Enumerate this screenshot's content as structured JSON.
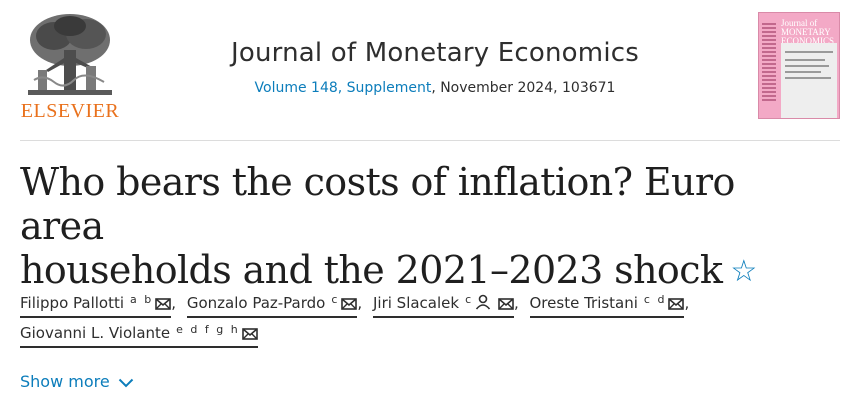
{
  "publisher": {
    "name": "ELSEVIER",
    "color": "#e9711c"
  },
  "journal": {
    "title": "Journal of Monetary Economics",
    "volume_link": "Volume 148, Supplement",
    "date_ref": ", November 2024, 103671",
    "link_color": "#0c7dbb"
  },
  "cover": {
    "title": "Journal of MONETARY ECONOMICS",
    "color": "#f3a9c6"
  },
  "article": {
    "title_line1": "Who bears the costs of inflation? Euro area",
    "title_line2": "households and the 2021–2023 shock",
    "star_icon": "star-outline-icon"
  },
  "authors": [
    {
      "name": "Filippo Pallotti",
      "aff": "a b",
      "icons": [
        "mail-icon"
      ]
    },
    {
      "name": "Gonzalo Paz-Pardo",
      "aff": "c",
      "icons": [
        "mail-icon"
      ]
    },
    {
      "name": "Jiri Slacalek",
      "aff": "c",
      "icons": [
        "person-icon",
        "mail-icon"
      ]
    },
    {
      "name": "Oreste Tristani",
      "aff": "c d",
      "icons": [
        "mail-icon"
      ]
    },
    {
      "name": "Giovanni L. Violante",
      "aff": "e d f g h",
      "icons": [
        "mail-icon"
      ]
    }
  ],
  "author_separator": ",",
  "show_more": {
    "label": "Show more",
    "icon": "chevron-down-icon"
  }
}
